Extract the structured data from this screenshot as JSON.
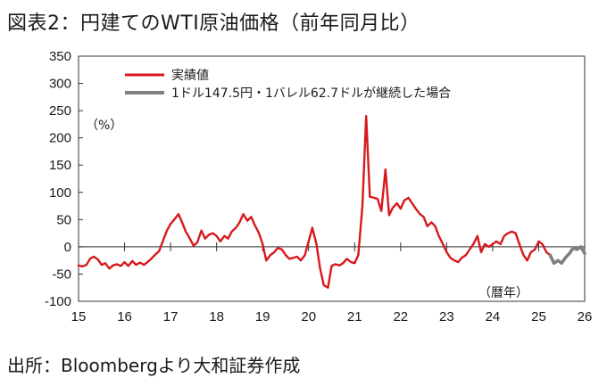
{
  "title": "図表2：円建てのWTI原油価格（前年同月比）",
  "source": "出所：Bloombergより大和証券作成",
  "chart_data": {
    "type": "line",
    "unit_label": "（%）",
    "x_unit_label": "（暦年）",
    "ylim": [
      -100,
      350
    ],
    "yticks": [
      350,
      300,
      250,
      200,
      150,
      100,
      50,
      0,
      -50,
      -100
    ],
    "xlim": [
      15,
      26
    ],
    "xticks": [
      "15",
      "16",
      "17",
      "18",
      "19",
      "20",
      "21",
      "22",
      "23",
      "24",
      "25",
      "26"
    ],
    "grid": false,
    "legend_position": "top-left",
    "series": [
      {
        "name": "実績値",
        "color": "#d7191c",
        "points": [
          [
            15.0,
            -34
          ],
          [
            15.08,
            -36
          ],
          [
            15.17,
            -33
          ],
          [
            15.25,
            -22
          ],
          [
            15.33,
            -18
          ],
          [
            15.42,
            -23
          ],
          [
            15.5,
            -33
          ],
          [
            15.58,
            -30
          ],
          [
            15.67,
            -40
          ],
          [
            15.75,
            -34
          ],
          [
            15.83,
            -32
          ],
          [
            15.92,
            -35
          ],
          [
            16.0,
            -28
          ],
          [
            16.08,
            -35
          ],
          [
            16.17,
            -26
          ],
          [
            16.25,
            -33
          ],
          [
            16.33,
            -29
          ],
          [
            16.42,
            -33
          ],
          [
            16.5,
            -28
          ],
          [
            16.58,
            -22
          ],
          [
            16.67,
            -14
          ],
          [
            16.75,
            -8
          ],
          [
            16.83,
            10
          ],
          [
            16.92,
            30
          ],
          [
            17.0,
            42
          ],
          [
            17.08,
            50
          ],
          [
            17.17,
            60
          ],
          [
            17.25,
            45
          ],
          [
            17.33,
            28
          ],
          [
            17.42,
            15
          ],
          [
            17.5,
            2
          ],
          [
            17.58,
            8
          ],
          [
            17.67,
            30
          ],
          [
            17.75,
            15
          ],
          [
            17.83,
            22
          ],
          [
            17.92,
            25
          ],
          [
            18.0,
            20
          ],
          [
            18.08,
            10
          ],
          [
            18.17,
            20
          ],
          [
            18.25,
            15
          ],
          [
            18.33,
            28
          ],
          [
            18.42,
            35
          ],
          [
            18.5,
            45
          ],
          [
            18.58,
            60
          ],
          [
            18.67,
            48
          ],
          [
            18.75,
            55
          ],
          [
            18.83,
            40
          ],
          [
            18.92,
            25
          ],
          [
            19.0,
            5
          ],
          [
            19.08,
            -25
          ],
          [
            19.17,
            -15
          ],
          [
            19.25,
            -10
          ],
          [
            19.33,
            -2
          ],
          [
            19.42,
            -5
          ],
          [
            19.5,
            -15
          ],
          [
            19.58,
            -22
          ],
          [
            19.67,
            -20
          ],
          [
            19.75,
            -18
          ],
          [
            19.83,
            -25
          ],
          [
            19.92,
            -15
          ],
          [
            20.0,
            10
          ],
          [
            20.08,
            35
          ],
          [
            20.17,
            5
          ],
          [
            20.25,
            -40
          ],
          [
            20.33,
            -70
          ],
          [
            20.42,
            -75
          ],
          [
            20.5,
            -35
          ],
          [
            20.58,
            -32
          ],
          [
            20.67,
            -34
          ],
          [
            20.75,
            -30
          ],
          [
            20.83,
            -22
          ],
          [
            20.92,
            -28
          ],
          [
            21.0,
            -30
          ],
          [
            21.08,
            -15
          ],
          [
            21.17,
            75
          ],
          [
            21.25,
            240
          ],
          [
            21.33,
            92
          ],
          [
            21.42,
            90
          ],
          [
            21.5,
            88
          ],
          [
            21.58,
            66
          ],
          [
            21.67,
            142
          ],
          [
            21.75,
            58
          ],
          [
            21.83,
            72
          ],
          [
            21.92,
            80
          ],
          [
            22.0,
            70
          ],
          [
            22.08,
            85
          ],
          [
            22.17,
            90
          ],
          [
            22.25,
            80
          ],
          [
            22.33,
            70
          ],
          [
            22.42,
            60
          ],
          [
            22.5,
            55
          ],
          [
            22.58,
            38
          ],
          [
            22.67,
            45
          ],
          [
            22.75,
            38
          ],
          [
            22.83,
            20
          ],
          [
            22.92,
            5
          ],
          [
            23.0,
            -10
          ],
          [
            23.08,
            -20
          ],
          [
            23.17,
            -25
          ],
          [
            23.25,
            -28
          ],
          [
            23.33,
            -20
          ],
          [
            23.42,
            -15
          ],
          [
            23.5,
            -5
          ],
          [
            23.58,
            5
          ],
          [
            23.67,
            20
          ],
          [
            23.75,
            -10
          ],
          [
            23.83,
            5
          ],
          [
            23.92,
            0
          ],
          [
            24.0,
            5
          ],
          [
            24.08,
            10
          ],
          [
            24.17,
            5
          ],
          [
            24.25,
            20
          ],
          [
            24.33,
            25
          ],
          [
            24.42,
            28
          ],
          [
            24.5,
            25
          ],
          [
            24.58,
            5
          ],
          [
            24.67,
            -15
          ],
          [
            24.75,
            -25
          ],
          [
            24.83,
            -10
          ],
          [
            24.92,
            -5
          ],
          [
            25.0,
            10
          ],
          [
            25.08,
            5
          ],
          [
            25.17,
            -10
          ],
          [
            25.25,
            -15
          ]
        ]
      },
      {
        "name": "1ドル147.5円・1バレル62.7ドルが継続した場合",
        "color": "#808080",
        "points": [
          [
            25.25,
            -15
          ],
          [
            25.33,
            -30
          ],
          [
            25.42,
            -25
          ],
          [
            25.5,
            -30
          ],
          [
            25.58,
            -20
          ],
          [
            25.67,
            -12
          ],
          [
            25.75,
            -2
          ],
          [
            25.83,
            -5
          ],
          [
            25.92,
            0
          ],
          [
            26.0,
            -12
          ]
        ]
      }
    ]
  }
}
